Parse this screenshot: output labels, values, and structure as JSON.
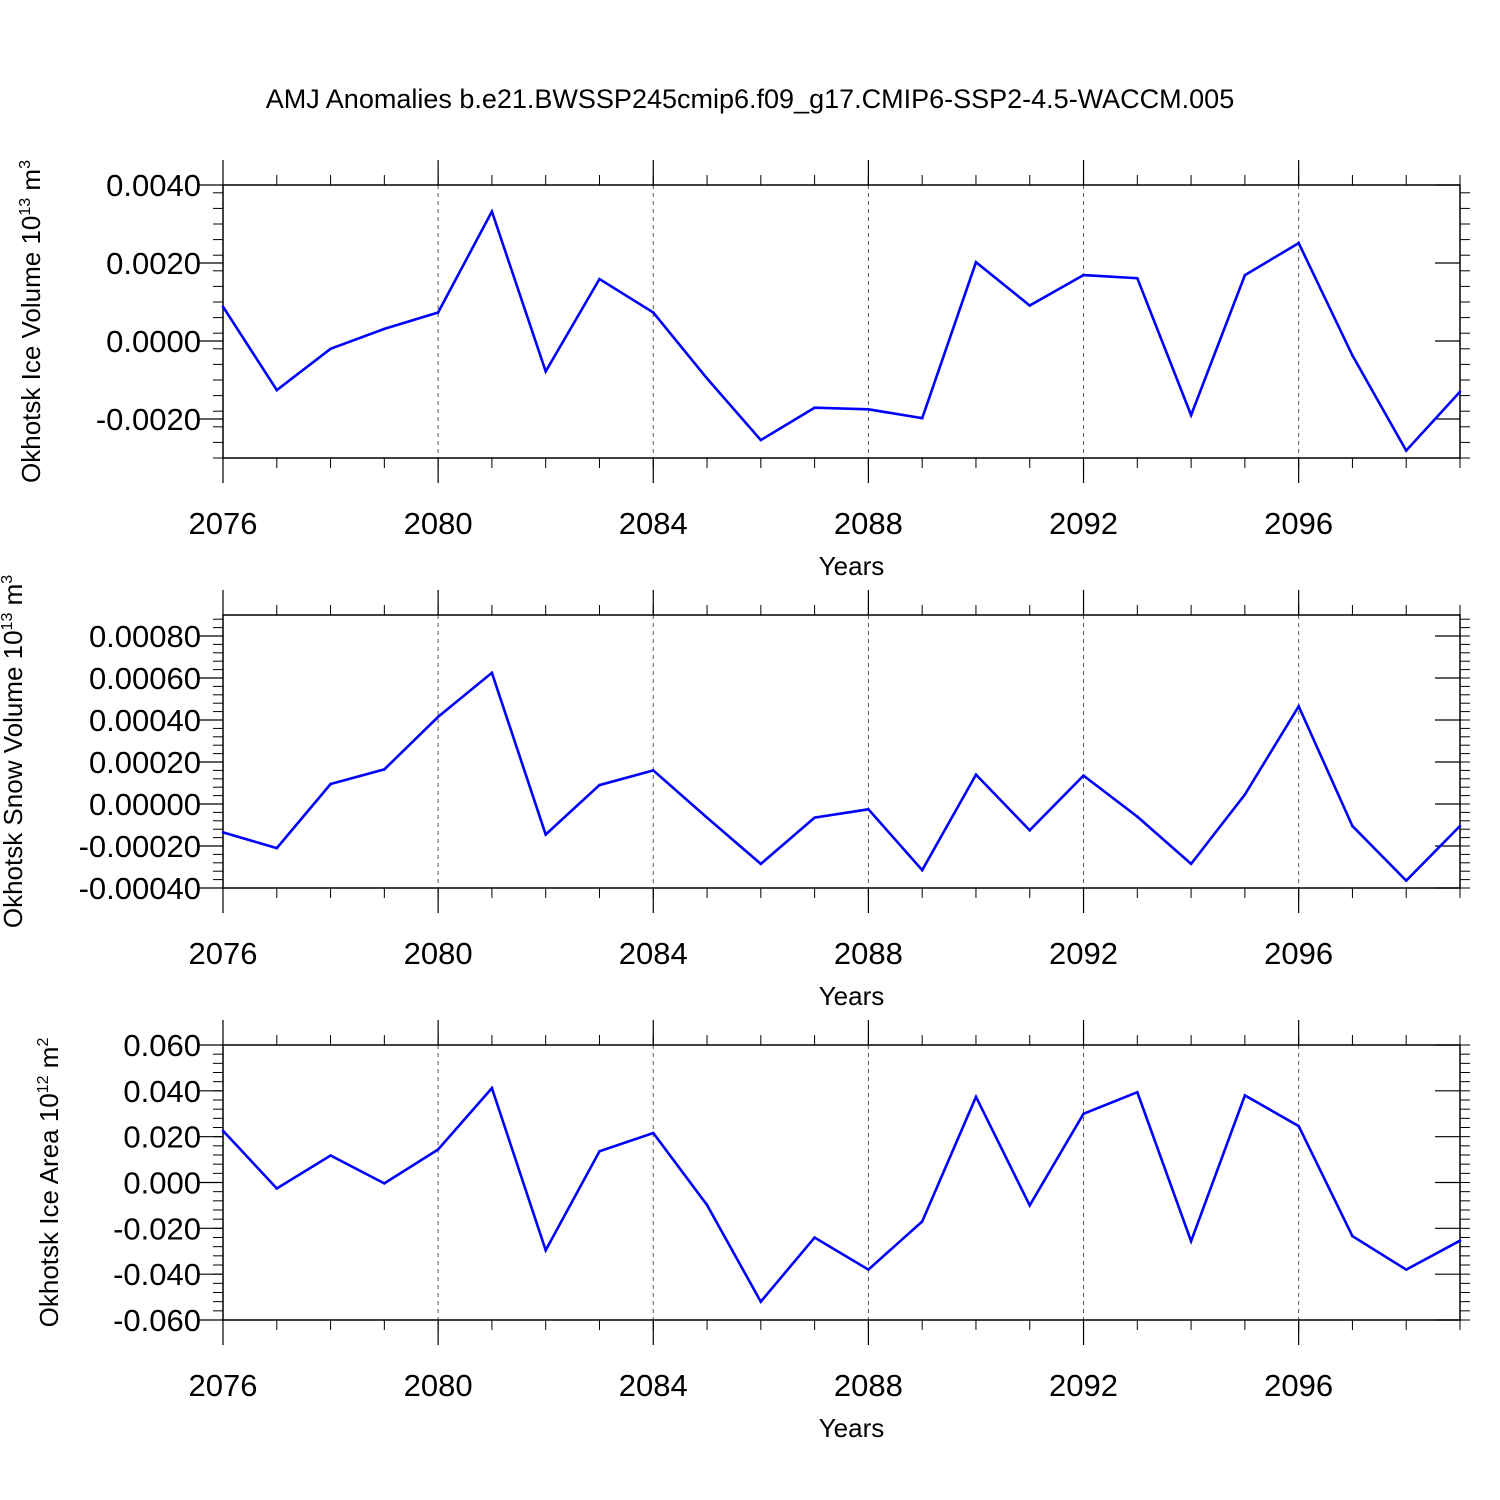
{
  "title": "AMJ Anomalies b.e21.BWSSP245cmip6.f09_g17.CMIP6-SSP2-4.5-WACCM.005",
  "line_color": "#0000ff",
  "chart_data": [
    {
      "type": "line",
      "ylabel": "Okhotsk Ice Volume",
      "unit_base": "10",
      "unit_exp": "13",
      "unit_name": "m",
      "unit_pow": "3",
      "xlabel": "Years",
      "xlim": [
        2076,
        2099
      ],
      "ylim": [
        -0.003,
        0.004
      ],
      "yticks": [
        "-0.0020",
        "0.0000",
        "0.0020",
        "0.0040"
      ],
      "xticks": [
        "2076",
        "2080",
        "2084",
        "2088",
        "2092",
        "2096"
      ],
      "x": [
        2076,
        2077,
        2078,
        2079,
        2080,
        2081,
        2082,
        2083,
        2084,
        2085,
        2086,
        2087,
        2088,
        2089,
        2090,
        2091,
        2092,
        2093,
        2094,
        2095,
        2096,
        2097,
        2098,
        2099
      ],
      "values": [
        0.00088,
        -0.00126,
        -0.0002,
        0.00031,
        0.00073,
        0.00332,
        -0.00078,
        0.00159,
        0.00073,
        -0.00096,
        -0.00254,
        -0.00171,
        -0.00175,
        -0.00198,
        0.00202,
        0.00091,
        0.00169,
        0.00161,
        -0.0019,
        0.00169,
        0.00251,
        -0.00037,
        -0.00281,
        -0.0013
      ]
    },
    {
      "type": "line",
      "ylabel": "Okhotsk Snow Volume",
      "unit_base": "10",
      "unit_exp": "13",
      "unit_name": "m",
      "unit_pow": "3",
      "xlabel": "Years",
      "xlim": [
        2076,
        2099
      ],
      "ylim": [
        -0.0004,
        0.0009
      ],
      "yticks": [
        "-0.00040",
        "-0.00020",
        "0.00000",
        "0.00020",
        "0.00040",
        "0.00060",
        "0.00080"
      ],
      "xticks": [
        "2076",
        "2080",
        "2084",
        "2088",
        "2092",
        "2096"
      ],
      "x": [
        2076,
        2077,
        2078,
        2079,
        2080,
        2081,
        2082,
        2083,
        2084,
        2085,
        2086,
        2087,
        2088,
        2089,
        2090,
        2091,
        2092,
        2093,
        2094,
        2095,
        2096,
        2097,
        2098,
        2099
      ],
      "values": [
        -0.000135,
        -0.00021,
        9.5e-05,
        0.000165,
        0.000415,
        0.000625,
        -0.000145,
        9e-05,
        0.00016,
        -6.5e-05,
        -0.000285,
        -6.5e-05,
        -2.5e-05,
        -0.000315,
        0.00014,
        -0.000125,
        0.000135,
        -6e-05,
        -0.000285,
        4.5e-05,
        0.000465,
        -0.000105,
        -0.000365,
        -0.000105
      ]
    },
    {
      "type": "line",
      "ylabel": "Okhotsk Ice Area",
      "unit_base": "10",
      "unit_exp": "12",
      "unit_name": "m",
      "unit_pow": "2",
      "xlabel": "Years",
      "xlim": [
        2076,
        2099
      ],
      "ylim": [
        -0.06,
        0.06
      ],
      "yticks": [
        "-0.060",
        "-0.040",
        "-0.020",
        "0.000",
        "0.020",
        "0.040",
        "0.060"
      ],
      "xticks": [
        "2076",
        "2080",
        "2084",
        "2088",
        "2092",
        "2096"
      ],
      "x": [
        2076,
        2077,
        2078,
        2079,
        2080,
        2081,
        2082,
        2083,
        2084,
        2085,
        2086,
        2087,
        2088,
        2089,
        2090,
        2091,
        2092,
        2093,
        2094,
        2095,
        2096,
        2097,
        2098,
        2099
      ],
      "values": [
        0.0226,
        -0.0026,
        0.0118,
        -0.0004,
        0.0144,
        0.0412,
        -0.0296,
        0.0136,
        0.0216,
        -0.0098,
        -0.052,
        -0.024,
        -0.038,
        -0.017,
        0.0374,
        -0.01,
        0.03,
        0.0394,
        -0.0256,
        0.038,
        0.0246,
        -0.0234,
        -0.038,
        -0.0254
      ]
    }
  ]
}
